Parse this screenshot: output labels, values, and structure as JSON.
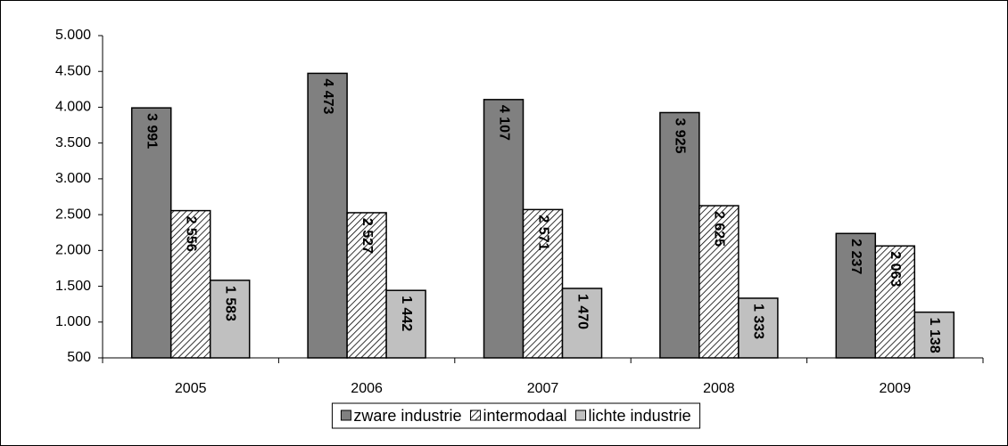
{
  "chart_data": {
    "type": "bar",
    "categories": [
      "2005",
      "2006",
      "2007",
      "2008",
      "2009"
    ],
    "series": [
      {
        "name": "zware industrie",
        "color": "#808080",
        "values": [
          3991,
          4473,
          4107,
          3925,
          2237
        ],
        "value_labels": [
          "3 991",
          "4 473",
          "4 107",
          "3 925",
          "2 237"
        ]
      },
      {
        "name": "intermodaal",
        "color": "#ffffff",
        "hatch": true,
        "values": [
          2556,
          2527,
          2571,
          2625,
          2063
        ],
        "value_labels": [
          "2 556",
          "2 527",
          "2 571",
          "2 625",
          "2 063"
        ]
      },
      {
        "name": "lichte industrie",
        "color": "#c0c0c0",
        "values": [
          1583,
          1442,
          1470,
          1333,
          1138
        ],
        "value_labels": [
          "1 583",
          "1 442",
          "1 470",
          "1 333",
          "1 138"
        ]
      }
    ],
    "ylim": [
      500,
      5000
    ],
    "yticks": [
      500,
      {
        "value": 1000,
        "label": "1.000"
      },
      {
        "value": 1500,
        "label": "1.500"
      },
      {
        "value": 2000,
        "label": "2.000"
      },
      {
        "value": 2500,
        "label": "2.500"
      },
      {
        "value": 3000,
        "label": "3.000"
      },
      {
        "value": 3500,
        "label": "3.500"
      },
      {
        "value": 4000,
        "label": "4.000"
      },
      {
        "value": 4500,
        "label": "4.500"
      },
      {
        "value": 5000,
        "label": "5.000"
      }
    ],
    "legend": "bottom"
  }
}
